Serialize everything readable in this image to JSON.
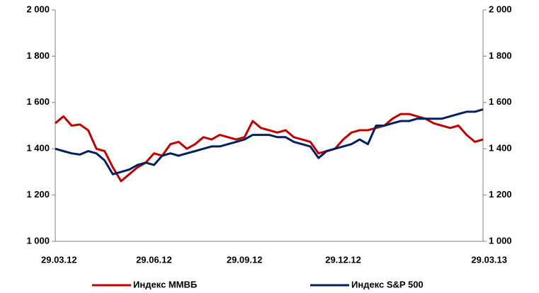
{
  "chart_data": {
    "type": "line",
    "categories": [
      "29.03.12",
      null,
      null,
      null,
      null,
      null,
      null,
      null,
      null,
      null,
      null,
      null,
      "29.06.12",
      null,
      null,
      null,
      null,
      null,
      null,
      null,
      null,
      null,
      null,
      "29.09.12",
      null,
      null,
      null,
      null,
      null,
      null,
      null,
      null,
      null,
      null,
      null,
      "29.12.12",
      null,
      null,
      null,
      null,
      null,
      null,
      null,
      null,
      null,
      null,
      null,
      null,
      null,
      null,
      null,
      null,
      "29.03.13"
    ],
    "series": [
      {
        "name": "Индекс ММВБ",
        "color": "#c00000",
        "axis": "y",
        "values": [
          1510,
          1540,
          1500,
          1505,
          1480,
          1400,
          1390,
          1320,
          1260,
          1290,
          1320,
          1340,
          1380,
          1370,
          1420,
          1430,
          1400,
          1420,
          1450,
          1440,
          1460,
          1450,
          1440,
          1450,
          1520,
          1490,
          1480,
          1470,
          1480,
          1450,
          1440,
          1430,
          1380,
          1390,
          1400,
          1440,
          1470,
          1480,
          1480,
          1490,
          1500,
          1530,
          1550,
          1550,
          1540,
          1530,
          1510,
          1500,
          1490,
          1500,
          1460,
          1430,
          1440
        ]
      },
      {
        "name": "Индекс S&P 500",
        "color": "#002060",
        "axis": "y2",
        "values": [
          1400,
          1390,
          1380,
          1375,
          1390,
          1380,
          1350,
          1290,
          1300,
          1310,
          1330,
          1340,
          1330,
          1370,
          1380,
          1370,
          1380,
          1390,
          1400,
          1410,
          1410,
          1420,
          1430,
          1440,
          1460,
          1460,
          1460,
          1450,
          1450,
          1430,
          1420,
          1410,
          1360,
          1390,
          1400,
          1410,
          1420,
          1440,
          1420,
          1500,
          1500,
          1510,
          1520,
          1520,
          1530,
          1530,
          1530,
          1530,
          1540,
          1550,
          1560,
          1560,
          1570
        ]
      }
    ],
    "ylim": [
      1000,
      2000
    ],
    "yticks": [
      {
        "value": 1000,
        "label": "1 000"
      },
      {
        "value": 1200,
        "label": "1 200"
      },
      {
        "value": 1400,
        "label": "1 400"
      },
      {
        "value": 1600,
        "label": "1 600"
      },
      {
        "value": 1800,
        "label": "1 800"
      },
      {
        "value": 2000,
        "label": "2 000"
      }
    ],
    "y2lim": [
      1000,
      2000
    ],
    "y2ticks": [
      {
        "value": 1000,
        "label": "1 000"
      },
      {
        "value": 1200,
        "label": "1 200"
      },
      {
        "value": 1400,
        "label": "1 400"
      },
      {
        "value": 1600,
        "label": "1 600"
      },
      {
        "value": 1800,
        "label": "1 800"
      },
      {
        "value": 2000,
        "label": "2 000"
      }
    ],
    "legend": "bottom"
  }
}
